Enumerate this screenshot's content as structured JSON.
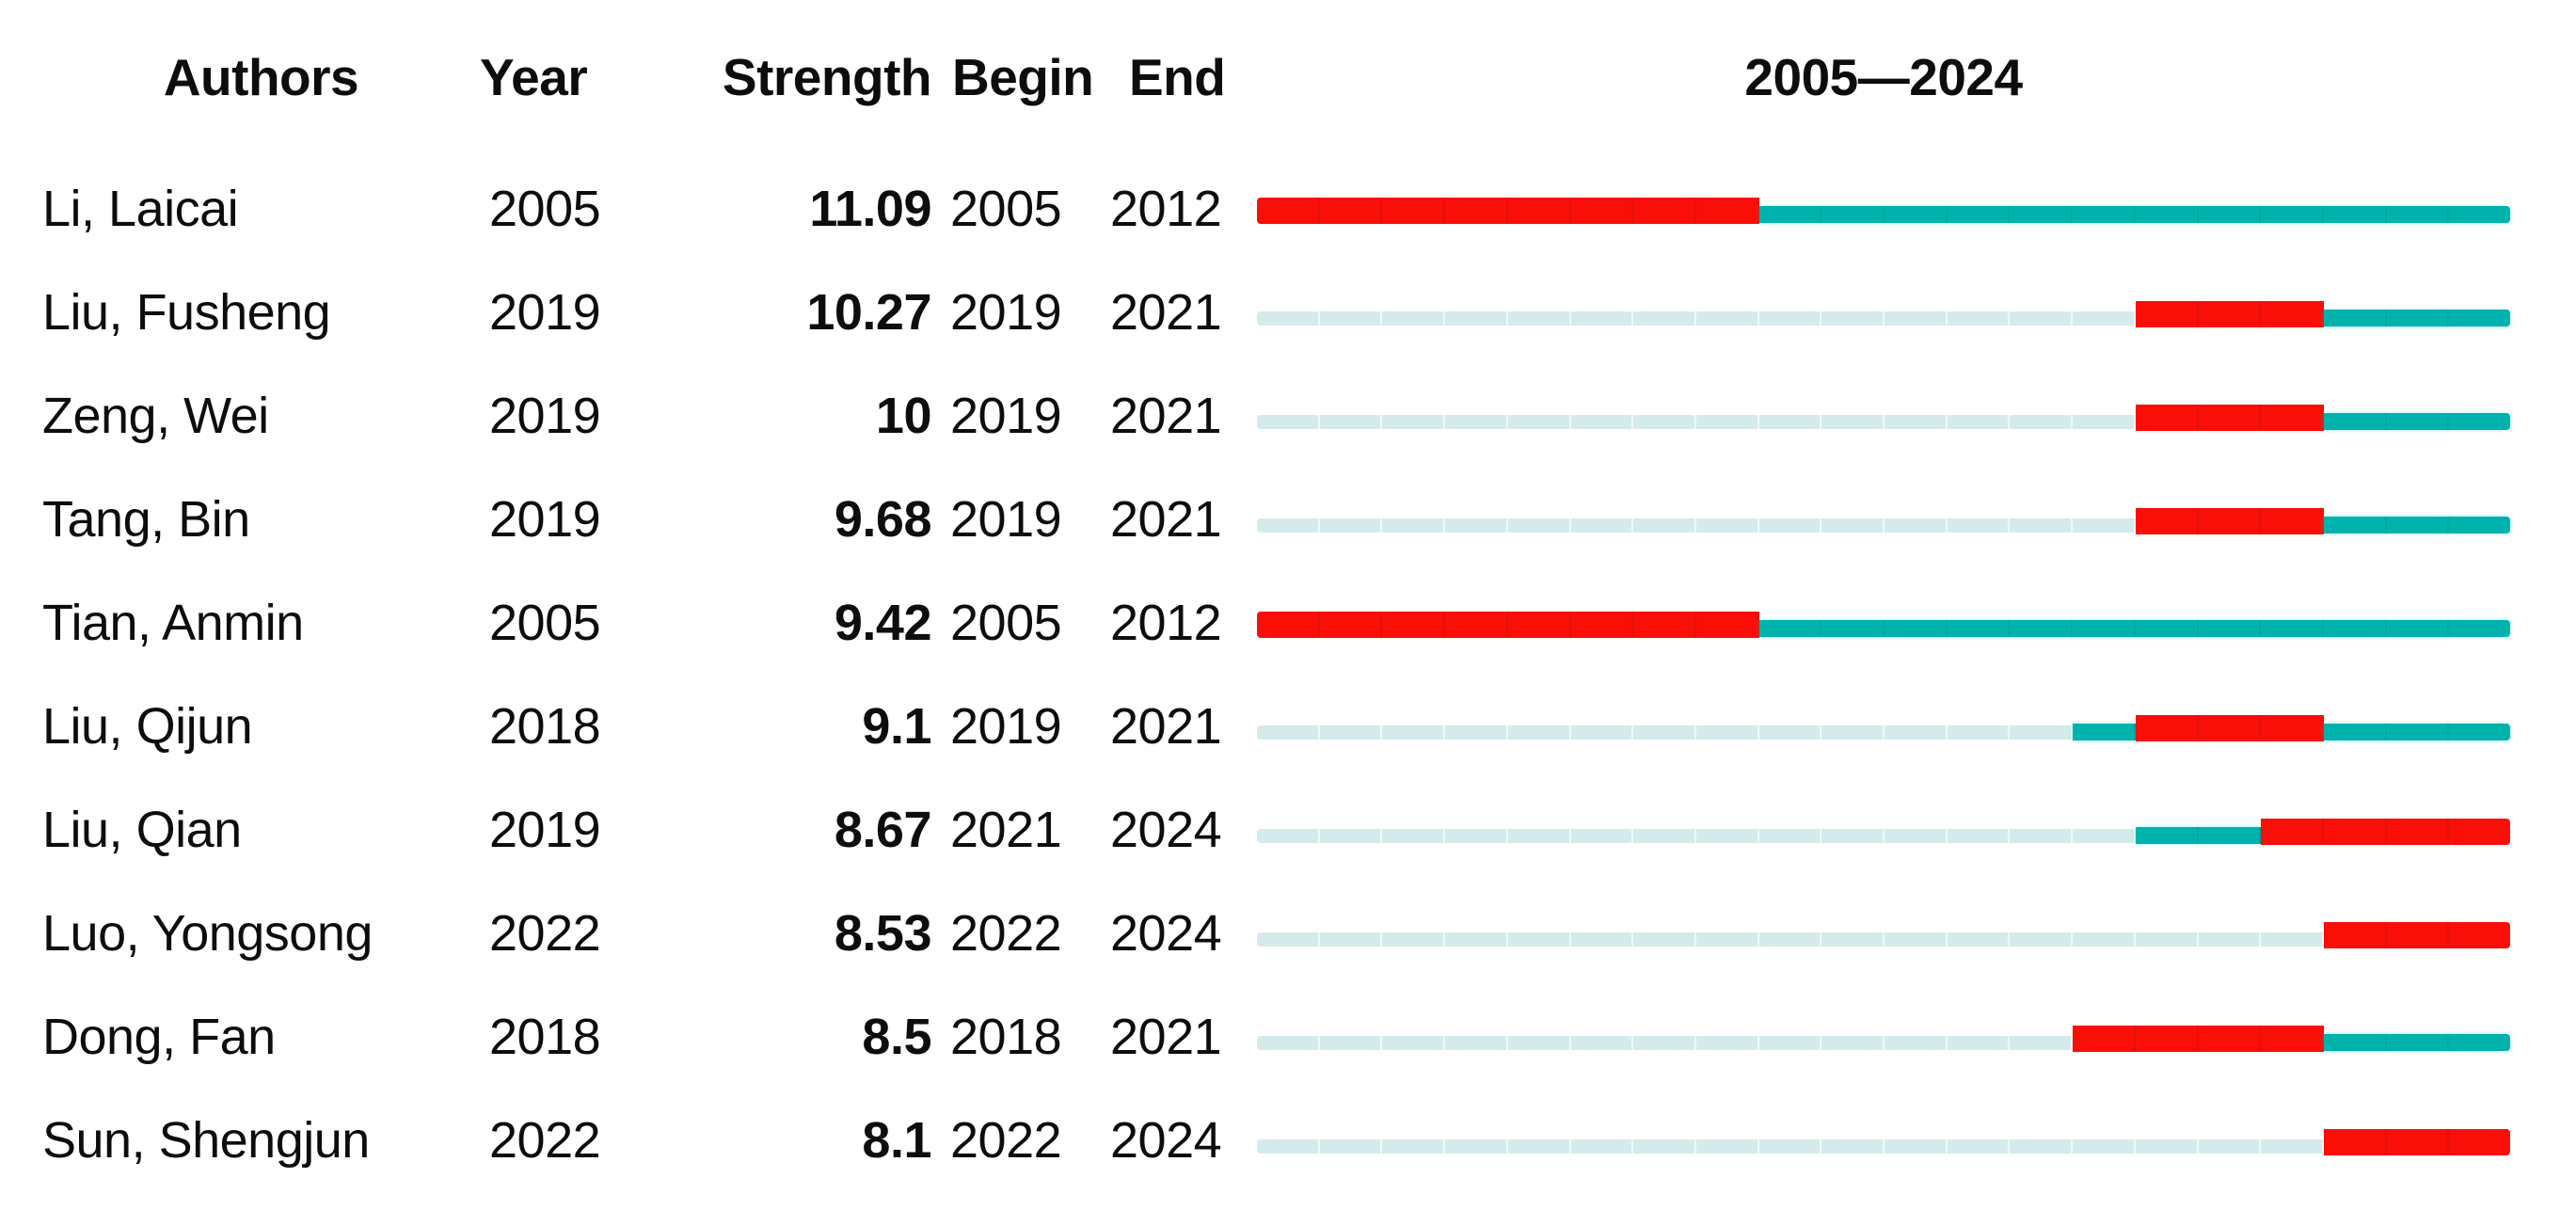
{
  "chart_data": {
    "type": "table",
    "title": "2005—2024",
    "columns": [
      "Authors",
      "Year",
      "Strength",
      "Begin",
      "End"
    ],
    "timeline": {
      "start": 2005,
      "end": 2024
    },
    "colors": {
      "burst": "#fa0e08",
      "burst_separator": "rgba(205,20,10,0.55)",
      "active": "#00b2ac",
      "active_separator": "rgba(0,140,138,0.45)",
      "inactive": "#d5eaeb",
      "inactive_separator": "rgba(255,255,255,0.65)",
      "text": "#0d0d0d",
      "background": "#ffffff"
    },
    "rows": [
      {
        "author": "Li, Laicai",
        "year": 2005,
        "strength": "11.09",
        "begin": 2005,
        "end": 2012
      },
      {
        "author": "Liu, Fusheng",
        "year": 2019,
        "strength": "10.27",
        "begin": 2019,
        "end": 2021
      },
      {
        "author": "Zeng, Wei",
        "year": 2019,
        "strength": "10",
        "begin": 2019,
        "end": 2021
      },
      {
        "author": "Tang, Bin",
        "year": 2019,
        "strength": "9.68",
        "begin": 2019,
        "end": 2021
      },
      {
        "author": "Tian, Anmin",
        "year": 2005,
        "strength": "9.42",
        "begin": 2005,
        "end": 2012
      },
      {
        "author": "Liu, Qijun",
        "year": 2018,
        "strength": "9.1",
        "begin": 2019,
        "end": 2021
      },
      {
        "author": "Liu, Qian",
        "year": 2019,
        "strength": "8.67",
        "begin": 2021,
        "end": 2024
      },
      {
        "author": "Luo, Yongsong",
        "year": 2022,
        "strength": "8.53",
        "begin": 2022,
        "end": 2024
      },
      {
        "author": "Dong, Fan",
        "year": 2018,
        "strength": "8.5",
        "begin": 2018,
        "end": 2021
      },
      {
        "author": "Sun, Shengjun",
        "year": 2022,
        "strength": "8.1",
        "begin": 2022,
        "end": 2024
      }
    ]
  }
}
